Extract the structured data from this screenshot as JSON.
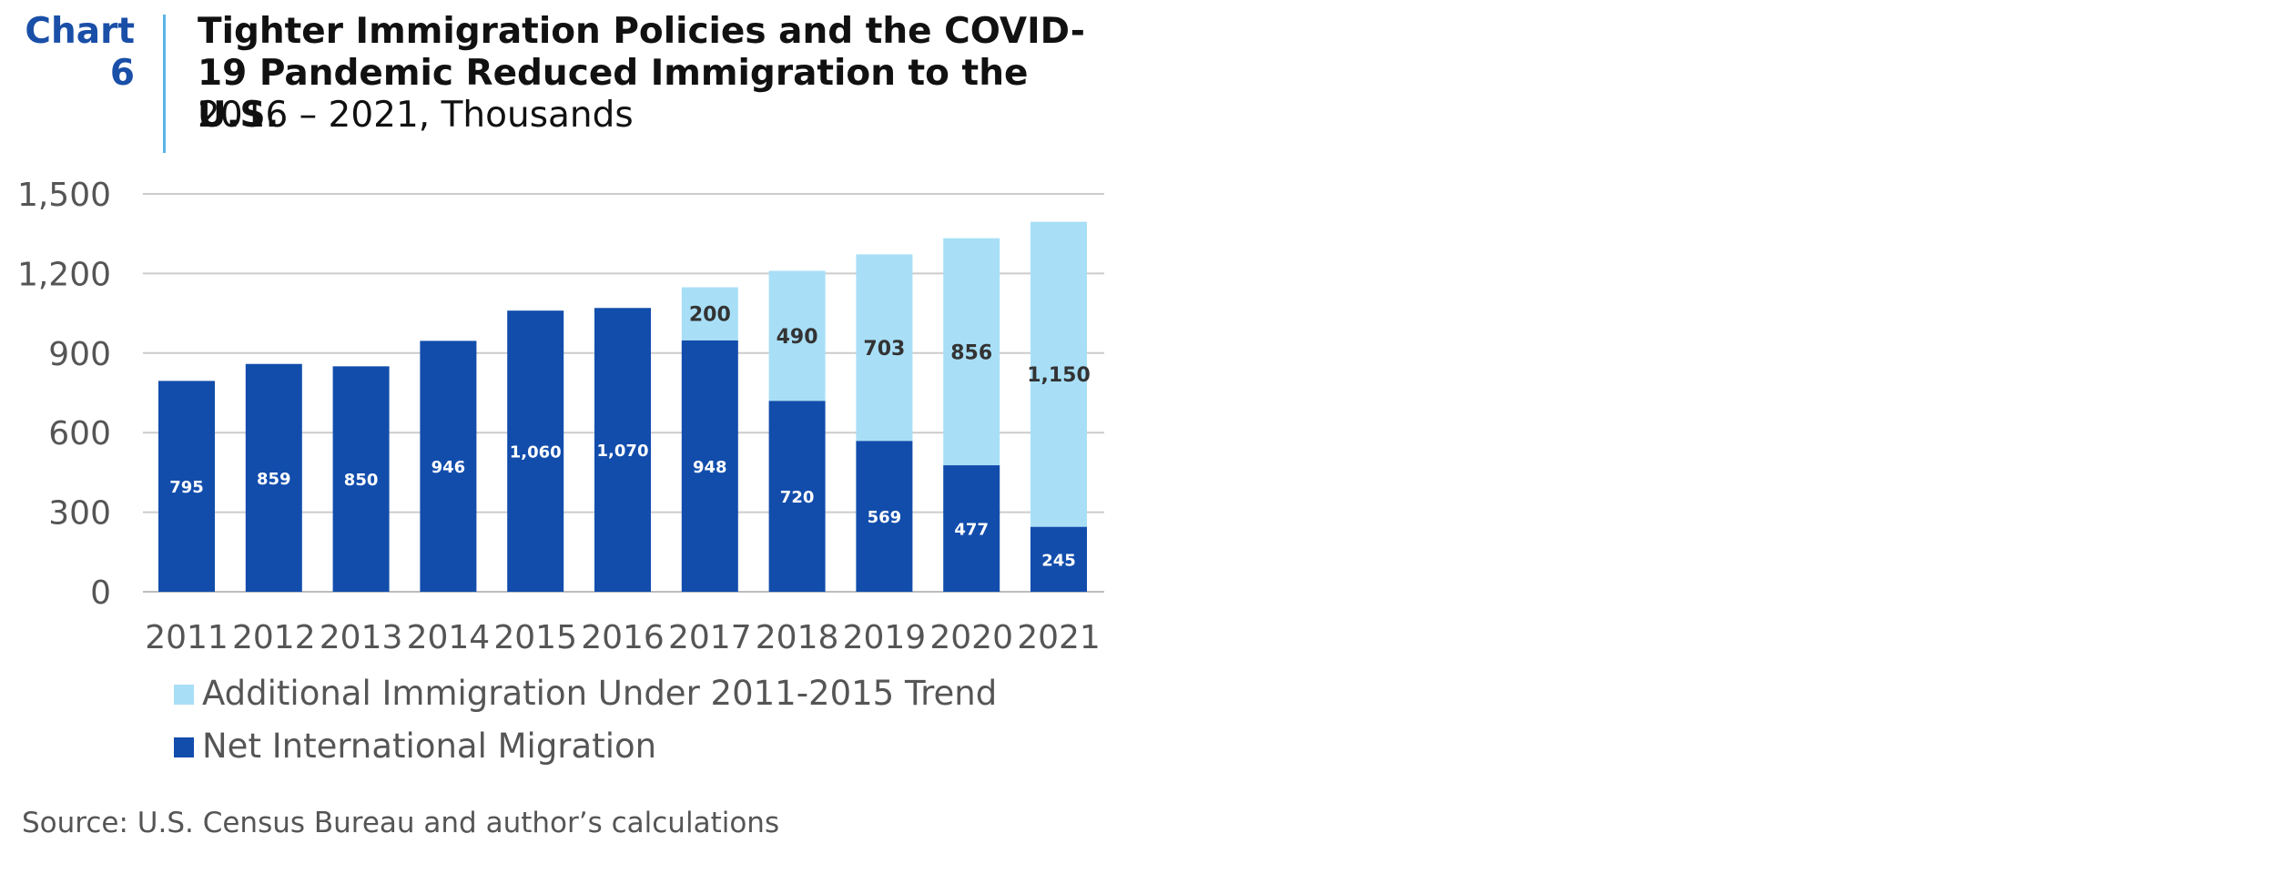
{
  "header": {
    "chart_label": "Chart 6",
    "title": "Tighter Immigration Policies and the COVID-19 Pandemic Reduced Immigration to the U.S.",
    "subtitle": "2016 – 2021, Thousands"
  },
  "source": "Source: U.S. Census Bureau and author’s calculations",
  "colors": {
    "net_migration": "#124dac",
    "additional": "#a8dff7",
    "gridline": "#cccccc",
    "divider": "#5ab4e5",
    "chart_label": "#1a4fa8"
  },
  "chart_data": {
    "type": "bar",
    "stacked": true,
    "title": "Tighter Immigration Policies and the COVID-19 Pandemic Reduced Immigration to the U.S.",
    "subtitle": "2016 – 2021, Thousands",
    "xlabel": "",
    "ylabel": "",
    "ylim": [
      0,
      1500
    ],
    "yticks": [
      0,
      300,
      600,
      900,
      1200,
      1500
    ],
    "ytick_labels": [
      "0",
      "300",
      "600",
      "900",
      "1,200",
      "1,500"
    ],
    "grid": true,
    "legend_position": "bottom-left",
    "categories": [
      "2011",
      "2012",
      "2013",
      "2014",
      "2015",
      "2016",
      "2017",
      "2018",
      "2019",
      "2020",
      "2021"
    ],
    "series": [
      {
        "name": "Net International Migration",
        "values": [
          795,
          859,
          850,
          946,
          1060,
          1070,
          948,
          720,
          569,
          477,
          245
        ],
        "labels": [
          "795",
          "859",
          "850",
          "946",
          "1,060",
          "1,070",
          "948",
          "720",
          "569",
          "477",
          "245"
        ]
      },
      {
        "name": "Additional Immigration Under 2011-2015 Trend",
        "values": [
          null,
          null,
          null,
          null,
          null,
          null,
          200,
          490,
          703,
          856,
          1150
        ],
        "labels": [
          "",
          "",
          "",
          "",
          "",
          "",
          "200",
          "490",
          "703",
          "856",
          "1,150"
        ]
      }
    ],
    "legend": [
      "Additional Immigration Under 2011-2015 Trend",
      "Net International Migration"
    ]
  }
}
